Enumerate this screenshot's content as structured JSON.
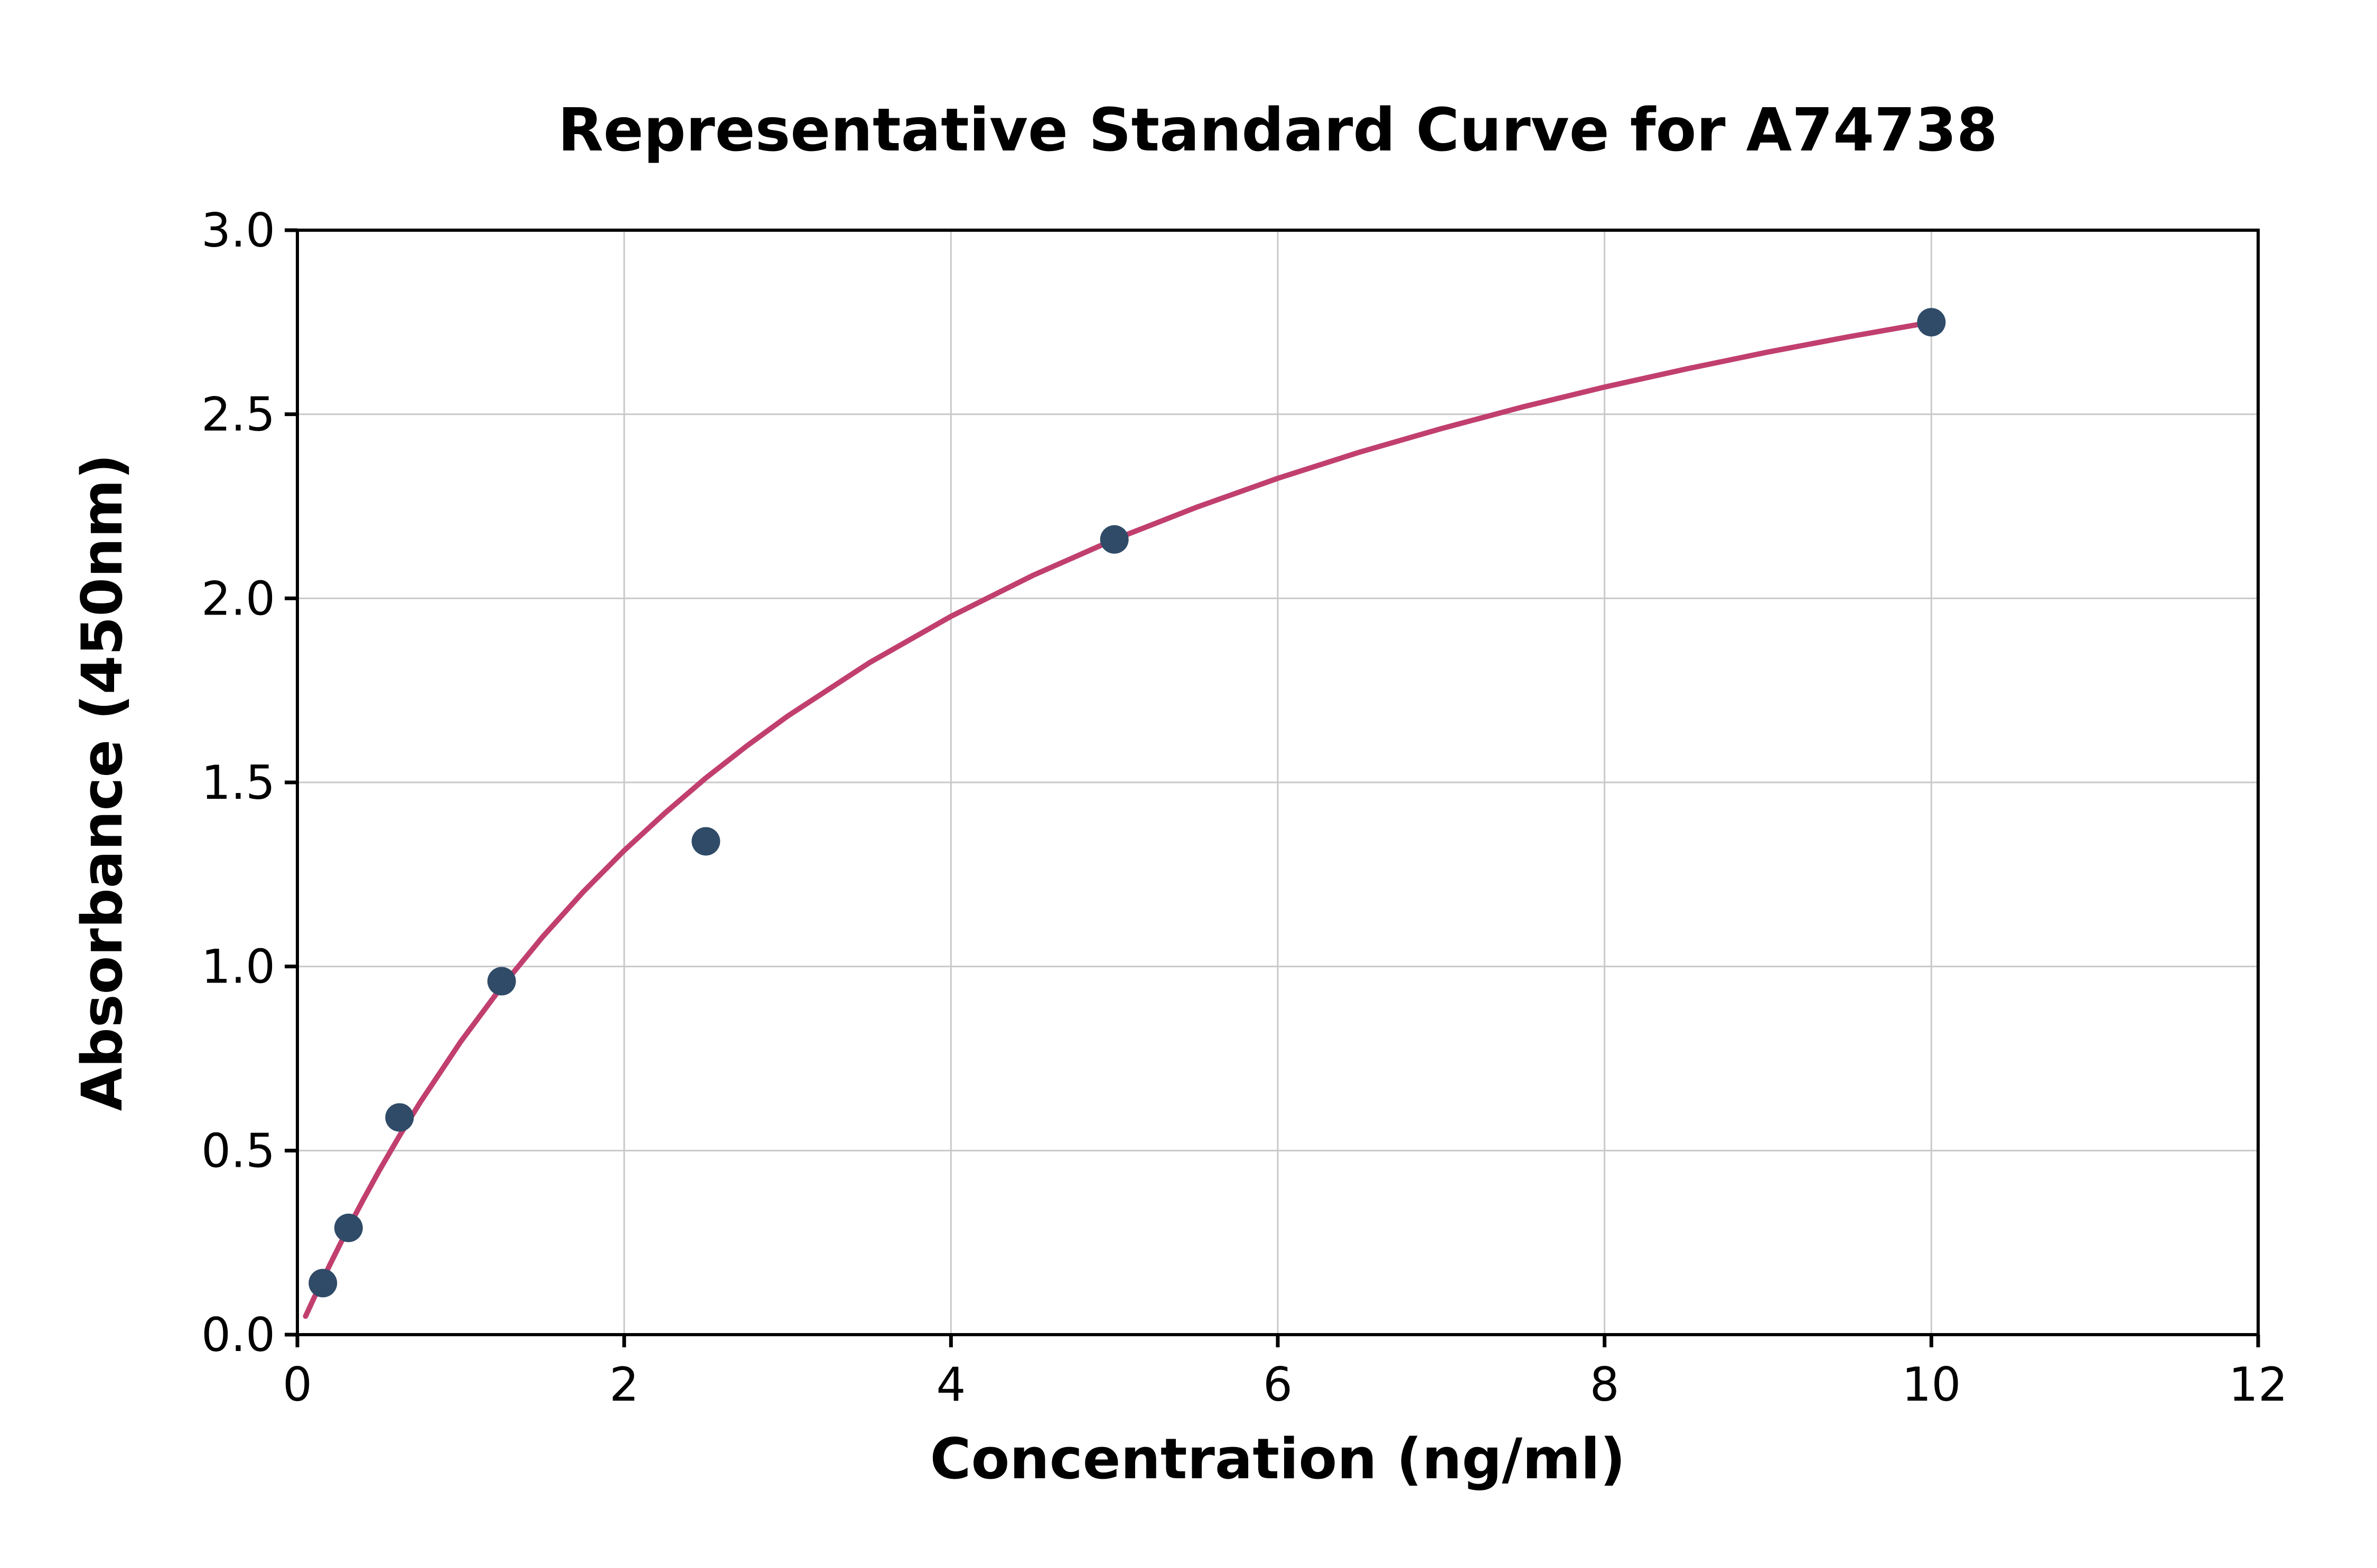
{
  "chart_data": {
    "type": "scatter",
    "title": "Representative Standard Curve for A74738",
    "xlabel": "Concentration (ng/ml)",
    "ylabel": "Absorbance (450nm)",
    "xlim": [
      0,
      12
    ],
    "ylim": [
      0.0,
      3.0
    ],
    "xticks": [
      0,
      2,
      4,
      6,
      8,
      10,
      12
    ],
    "xtick_labels": [
      "0",
      "2",
      "4",
      "6",
      "8",
      "10",
      "12"
    ],
    "yticks": [
      0.0,
      0.5,
      1.0,
      1.5,
      2.0,
      2.5,
      3.0
    ],
    "ytick_labels": [
      "0.0",
      "0.5",
      "1.0",
      "1.5",
      "2.0",
      "2.5",
      "3.0"
    ],
    "grid": true,
    "legend_position": "none",
    "series": [
      {
        "name": "standard-points",
        "type": "scatter",
        "points": [
          [
            0.156,
            0.14
          ],
          [
            0.313,
            0.29
          ],
          [
            0.625,
            0.59
          ],
          [
            1.25,
            0.96
          ],
          [
            2.5,
            1.34
          ],
          [
            5.0,
            2.16
          ],
          [
            10.0,
            2.75
          ]
        ]
      },
      {
        "name": "fit-curve",
        "type": "line",
        "points": [
          [
            0.05,
            0.05
          ],
          [
            0.1,
            0.098
          ],
          [
            0.2,
            0.191
          ],
          [
            0.3,
            0.28
          ],
          [
            0.4,
            0.364
          ],
          [
            0.5,
            0.445
          ],
          [
            0.625,
            0.54
          ],
          [
            0.75,
            0.63
          ],
          [
            1.0,
            0.796
          ],
          [
            1.25,
            0.945
          ],
          [
            1.5,
            1.08
          ],
          [
            1.75,
            1.203
          ],
          [
            2.0,
            1.315
          ],
          [
            2.25,
            1.417
          ],
          [
            2.5,
            1.512
          ],
          [
            2.75,
            1.599
          ],
          [
            3.0,
            1.68
          ],
          [
            3.5,
            1.825
          ],
          [
            4.0,
            1.951
          ],
          [
            4.5,
            2.062
          ],
          [
            5.0,
            2.16
          ],
          [
            5.5,
            2.247
          ],
          [
            6.0,
            2.326
          ],
          [
            6.5,
            2.397
          ],
          [
            7.0,
            2.461
          ],
          [
            7.5,
            2.52
          ],
          [
            8.0,
            2.574
          ],
          [
            8.5,
            2.623
          ],
          [
            9.0,
            2.669
          ],
          [
            9.5,
            2.711
          ],
          [
            10.0,
            2.75
          ]
        ]
      }
    ],
    "colors": {
      "point": "#2f4b68",
      "curve": "#c13f6e",
      "grid": "#c9c9c9",
      "axis": "#000000",
      "background": "#ffffff"
    }
  }
}
